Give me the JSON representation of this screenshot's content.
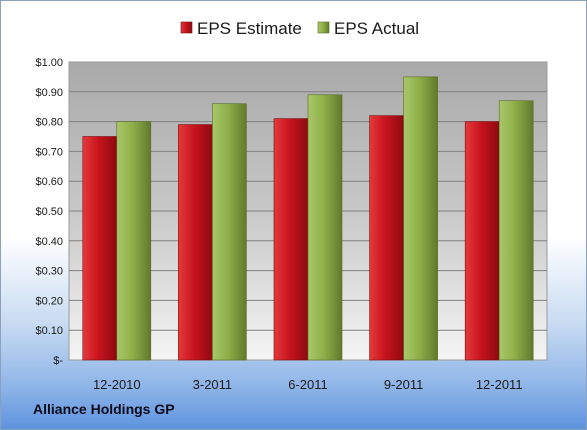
{
  "company": "Alliance Holdings GP",
  "chart_data": {
    "type": "bar",
    "categories": [
      "12-2010",
      "3-2011",
      "6-2011",
      "9-2011",
      "12-2011"
    ],
    "series": [
      {
        "name": "EPS Estimate",
        "values": [
          0.75,
          0.79,
          0.81,
          0.82,
          0.8
        ],
        "color": "#c8141e"
      },
      {
        "name": "EPS Actual",
        "values": [
          0.8,
          0.86,
          0.89,
          0.95,
          0.87
        ],
        "color": "#8fb049"
      }
    ],
    "yticks": [
      "$-",
      "$0.10",
      "$0.20",
      "$0.30",
      "$0.40",
      "$0.50",
      "$0.60",
      "$0.70",
      "$0.80",
      "$0.90",
      "$1.00"
    ],
    "ylim": [
      0,
      1.0
    ],
    "legend_position": "top",
    "grid": true
  }
}
